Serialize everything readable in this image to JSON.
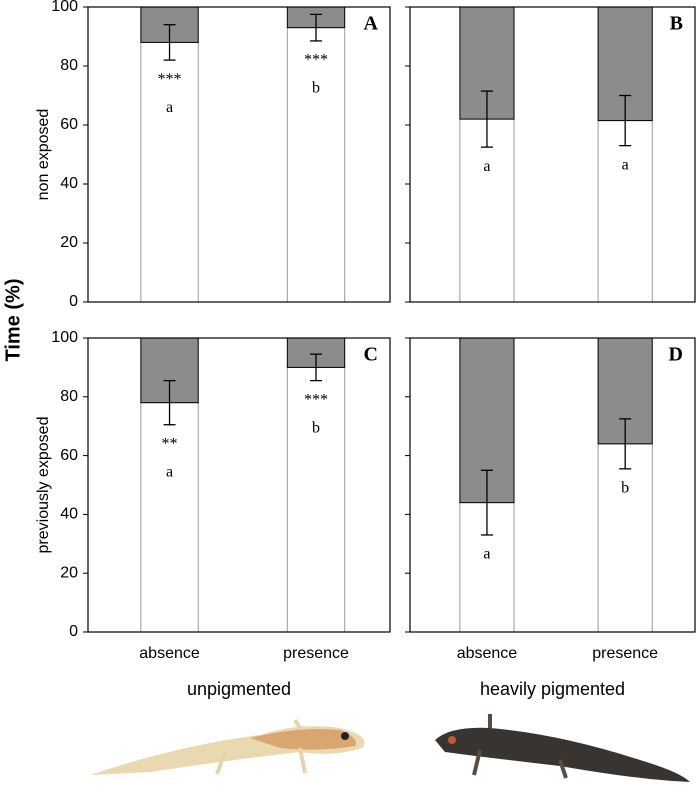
{
  "figure": {
    "ylabel": "Time (%)"
  },
  "chart_data": [
    {
      "type": "bar",
      "stacked": true,
      "panel_label": "A",
      "ylabel": "non exposed",
      "categories": [
        null,
        null
      ],
      "ylim": [
        0,
        100
      ],
      "yticks": [
        0,
        20,
        40,
        60,
        80,
        100
      ],
      "ytick_labels": true,
      "series": [
        {
          "color": "#ffffff",
          "values": [
            88,
            93
          ],
          "errors": [
            6,
            4.5
          ]
        },
        {
          "color": "#8c8c8c",
          "values": [
            12,
            7
          ]
        }
      ],
      "significance": [
        "***",
        "***"
      ],
      "letters": [
        "a",
        "b"
      ]
    },
    {
      "type": "bar",
      "stacked": true,
      "panel_label": "B",
      "categories": [
        null,
        null
      ],
      "ylim": [
        0,
        100
      ],
      "yticks": [
        0,
        20,
        40,
        60,
        80,
        100
      ],
      "ytick_labels": false,
      "series": [
        {
          "color": "#ffffff",
          "values": [
            62,
            61.5
          ],
          "errors": [
            9.5,
            8.5
          ]
        },
        {
          "color": "#8c8c8c",
          "values": [
            38,
            38.5
          ]
        }
      ],
      "letters": [
        "a",
        "a"
      ]
    },
    {
      "type": "bar",
      "stacked": true,
      "panel_label": "C",
      "ylabel": "previously exposed",
      "xlabel": "unpigmented",
      "categories": [
        "absence",
        "presence"
      ],
      "ylim": [
        0,
        100
      ],
      "yticks": [
        0,
        20,
        40,
        60,
        80,
        100
      ],
      "ytick_labels": true,
      "series": [
        {
          "color": "#ffffff",
          "values": [
            78,
            90
          ],
          "errors": [
            7.5,
            4.5
          ]
        },
        {
          "color": "#8c8c8c",
          "values": [
            22,
            10
          ]
        }
      ],
      "significance": [
        "**",
        "***"
      ],
      "letters": [
        "a",
        "b"
      ]
    },
    {
      "type": "bar",
      "stacked": true,
      "panel_label": "D",
      "xlabel": "heavily pigmented",
      "categories": [
        "absence",
        "presence"
      ],
      "ylim": [
        0,
        100
      ],
      "yticks": [
        0,
        20,
        40,
        60,
        80,
        100
      ],
      "ytick_labels": false,
      "series": [
        {
          "color": "#ffffff",
          "values": [
            44,
            64
          ],
          "errors": [
            11,
            8.5
          ]
        },
        {
          "color": "#8c8c8c",
          "values": [
            56,
            36
          ]
        }
      ],
      "letters": [
        "a",
        "b"
      ]
    }
  ]
}
